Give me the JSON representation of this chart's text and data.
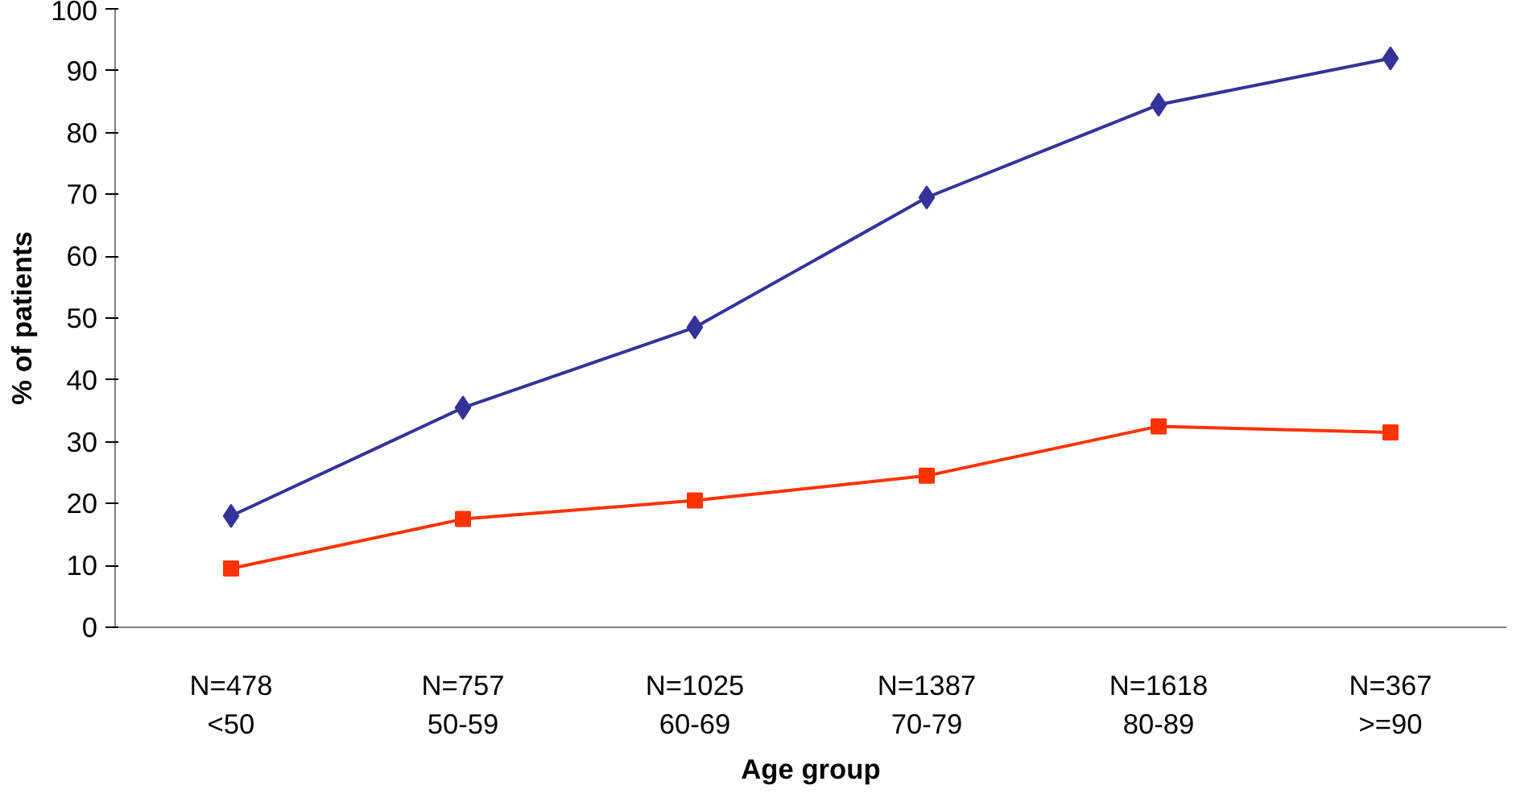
{
  "chart_data": {
    "type": "line",
    "xlabel": "Age group",
    "ylabel": "% of patients",
    "categories": [
      "N=478\n<50",
      "N=757\n50-59",
      "N=1025\n60-69",
      "N=1387\n70-79",
      "N=1618\n80-89",
      "N=367\n>=90"
    ],
    "series": [
      {
        "color": "#333399",
        "marker": "diamond",
        "values": [
          18,
          35.5,
          48.5,
          69.5,
          84.5,
          92
        ]
      },
      {
        "color": "#ff3300",
        "marker": "square",
        "values": [
          9.5,
          17.5,
          20.5,
          24.5,
          32.5,
          31.5
        ]
      }
    ],
    "ylim": [
      0,
      100
    ],
    "yticks": [
      0,
      10,
      20,
      30,
      40,
      50,
      60,
      70,
      80,
      90,
      100
    ],
    "grid": false,
    "line_style": "solid"
  }
}
